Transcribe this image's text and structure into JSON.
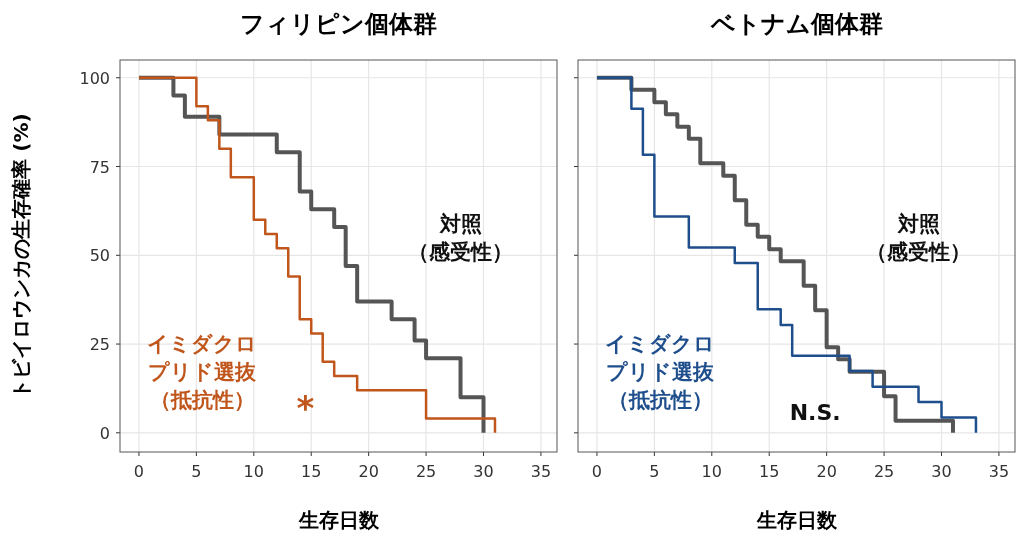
{
  "chart_data": [
    {
      "type": "step",
      "title": "フィリピン個体群",
      "xlabel": "生存日数",
      "ylabel": "トビイロウンカの生存確率 (%)",
      "xlim": [
        -1.65,
        36.4
      ],
      "ylim": [
        -5.4,
        105
      ],
      "xticks": [
        0,
        5,
        10,
        15,
        20,
        25,
        30,
        35
      ],
      "yticks": [
        0,
        25,
        50,
        75,
        100
      ],
      "grid": true,
      "annotations": [
        "*"
      ],
      "series": [
        {
          "name": "対照（感受性）",
          "color": "#555555",
          "x": [
            0,
            3,
            4,
            7,
            12,
            14,
            15,
            17,
            18,
            19,
            22,
            24,
            25,
            28,
            30
          ],
          "values": [
            100,
            95,
            89,
            84,
            79,
            68,
            63,
            58,
            47,
            37,
            32,
            26,
            21,
            10,
            0
          ]
        },
        {
          "name": "イミダクロプリド選抜（抵抗性）",
          "color": "#c0561b",
          "x": [
            0,
            5,
            6,
            7,
            8,
            10,
            11,
            12,
            13,
            14,
            15,
            16,
            17,
            19,
            25,
            31
          ],
          "values": [
            100,
            92,
            88,
            80,
            72,
            60,
            56,
            52,
            44,
            32,
            28,
            20,
            16,
            12,
            4,
            0
          ]
        }
      ]
    },
    {
      "type": "step",
      "title": "ベトナム個体群",
      "xlabel": "生存日数",
      "xlim": [
        -1.65,
        36.4
      ],
      "ylim": [
        -5.4,
        105
      ],
      "xticks": [
        0,
        5,
        10,
        15,
        20,
        25,
        30,
        35
      ],
      "yticks": [
        0,
        25,
        50,
        75,
        100
      ],
      "tick_labels": "x",
      "grid": true,
      "annotations": [
        "N.S."
      ],
      "series": [
        {
          "name": "対照（感受性）",
          "color": "#555555",
          "x": [
            0,
            3,
            5,
            6,
            7,
            8,
            9,
            11,
            12,
            13,
            14,
            15,
            16,
            18,
            19,
            20,
            21,
            22,
            25,
            26,
            31
          ],
          "values": [
            100,
            96.6,
            93.1,
            89.7,
            86.2,
            82.8,
            75.9,
            72.4,
            65.5,
            58.6,
            55.2,
            51.7,
            48.3,
            41.4,
            34.5,
            24.1,
            20.7,
            17.2,
            10.3,
            3.4,
            0
          ]
        },
        {
          "name": "イミダクロプリド選抜（抵抗性）",
          "color": "#1f4e8c",
          "x": [
            0,
            3,
            4,
            5,
            8,
            12,
            14,
            16,
            17,
            22,
            24,
            28,
            30,
            33
          ],
          "values": [
            100,
            91.3,
            78.3,
            60.9,
            52.2,
            47.8,
            34.8,
            30.4,
            21.7,
            17.4,
            13,
            8.7,
            4.3,
            0
          ]
        }
      ]
    }
  ]
}
